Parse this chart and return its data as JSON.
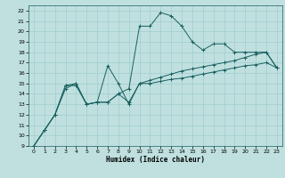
{
  "xlabel": "Humidex (Indice chaleur)",
  "bg_color": "#c0e0e0",
  "grid_color": "#a0cccc",
  "line_color": "#1a6060",
  "xlim": [
    -0.5,
    23.5
  ],
  "ylim": [
    9,
    22.5
  ],
  "xticks": [
    0,
    1,
    2,
    3,
    4,
    5,
    6,
    7,
    8,
    9,
    10,
    11,
    12,
    13,
    14,
    15,
    16,
    17,
    18,
    19,
    20,
    21,
    22,
    23
  ],
  "yticks": [
    9,
    10,
    11,
    12,
    13,
    14,
    15,
    16,
    17,
    18,
    19,
    20,
    21,
    22
  ],
  "series": [
    {
      "x": [
        0,
        1,
        2,
        3,
        4,
        5,
        6,
        7,
        8,
        9,
        10,
        11,
        12,
        13,
        14,
        15,
        16,
        17,
        18,
        19,
        20,
        21,
        22,
        23
      ],
      "y": [
        9,
        10.5,
        12,
        14.8,
        14.8,
        13.0,
        13.2,
        16.7,
        15.0,
        13.0,
        15.0,
        15.0,
        15.2,
        15.4,
        15.5,
        15.7,
        15.9,
        16.1,
        16.3,
        16.5,
        16.7,
        16.8,
        17.0,
        16.5
      ]
    },
    {
      "x": [
        0,
        1,
        2,
        3,
        4,
        5,
        6,
        7,
        8,
        9,
        10,
        11,
        12,
        13,
        14,
        15,
        16,
        17,
        18,
        19,
        20,
        21,
        22,
        23
      ],
      "y": [
        9,
        10.5,
        12,
        14.8,
        15.0,
        13.0,
        13.2,
        13.2,
        14.0,
        14.5,
        20.5,
        20.5,
        21.8,
        21.5,
        20.5,
        19.0,
        18.2,
        18.8,
        18.8,
        18.0,
        18.0,
        18.0,
        18.0,
        16.5
      ]
    },
    {
      "x": [
        0,
        1,
        2,
        3,
        4,
        5,
        6,
        7,
        8,
        9,
        10,
        11,
        12,
        13,
        14,
        15,
        16,
        17,
        18,
        19,
        20,
        21,
        22,
        23
      ],
      "y": [
        9,
        10.5,
        12,
        14.5,
        15.0,
        13.0,
        13.2,
        13.2,
        14.0,
        13.2,
        15.0,
        15.3,
        15.6,
        15.9,
        16.2,
        16.4,
        16.6,
        16.8,
        17.0,
        17.2,
        17.5,
        17.8,
        18.0,
        16.5
      ]
    }
  ]
}
